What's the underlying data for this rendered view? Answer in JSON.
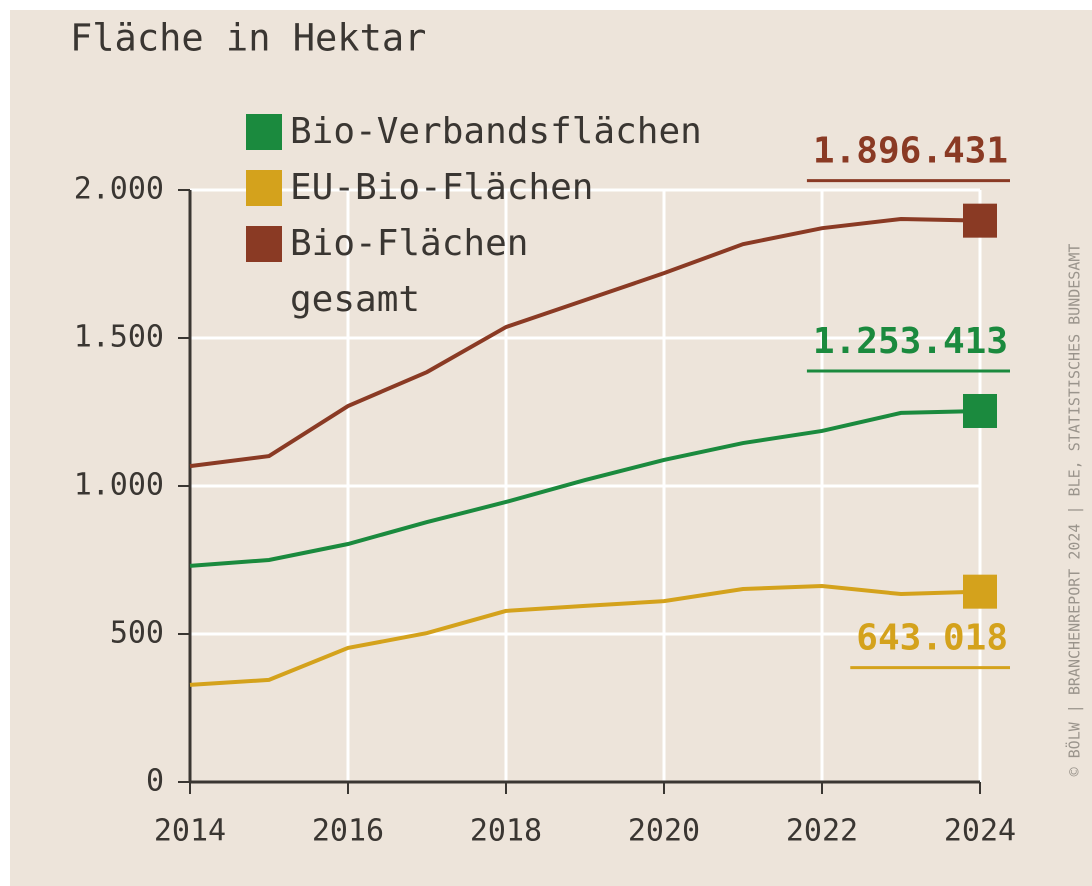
{
  "chart_data": {
    "type": "line",
    "title": "Fläche in Hektar",
    "source": "© BÖLW | BRANCHENREPORT 2024 | BLE, STATISTISCHES BUNDESAMT",
    "x": [
      2014,
      2015,
      2016,
      2017,
      2018,
      2019,
      2020,
      2021,
      2022,
      2023,
      2024
    ],
    "series": [
      {
        "name": "Bio-Verbandsflächen",
        "color": "#1b8a3e",
        "values": [
          730,
          750,
          804,
          878,
          946,
          1020,
          1088,
          1145,
          1186,
          1247,
          1253.413
        ],
        "value_labels": [
          null,
          null,
          null,
          null,
          null,
          null,
          null,
          null,
          null,
          null,
          "1.253.413"
        ]
      },
      {
        "name": "EU-Bio-Flächen",
        "color": "#d4a21c",
        "values": [
          328,
          345,
          453,
          503,
          578,
          595,
          611,
          652,
          662,
          635,
          643.018
        ],
        "value_labels": [
          null,
          null,
          null,
          null,
          null,
          null,
          null,
          null,
          null,
          null,
          "643.018"
        ]
      },
      {
        "name": "Bio-Flächen gesamt",
        "color": "#8a3a24",
        "values": [
          1067,
          1101,
          1270,
          1385,
          1537,
          1628,
          1719,
          1817,
          1871,
          1902,
          1896.431
        ],
        "value_labels": [
          null,
          null,
          null,
          null,
          null,
          null,
          null,
          null,
          null,
          null,
          "1.896.431"
        ]
      }
    ],
    "xlim": [
      2014,
      2024
    ],
    "xticks": [
      2014,
      2016,
      2018,
      2020,
      2022,
      2024
    ],
    "ylim": [
      0,
      2000
    ],
    "yticks": [
      0,
      500,
      {
        "value": 1000,
        "label": "1.000"
      },
      {
        "value": 1500,
        "label": "1.500"
      },
      {
        "value": 2000,
        "label": "2.000"
      }
    ],
    "grid": true
  }
}
